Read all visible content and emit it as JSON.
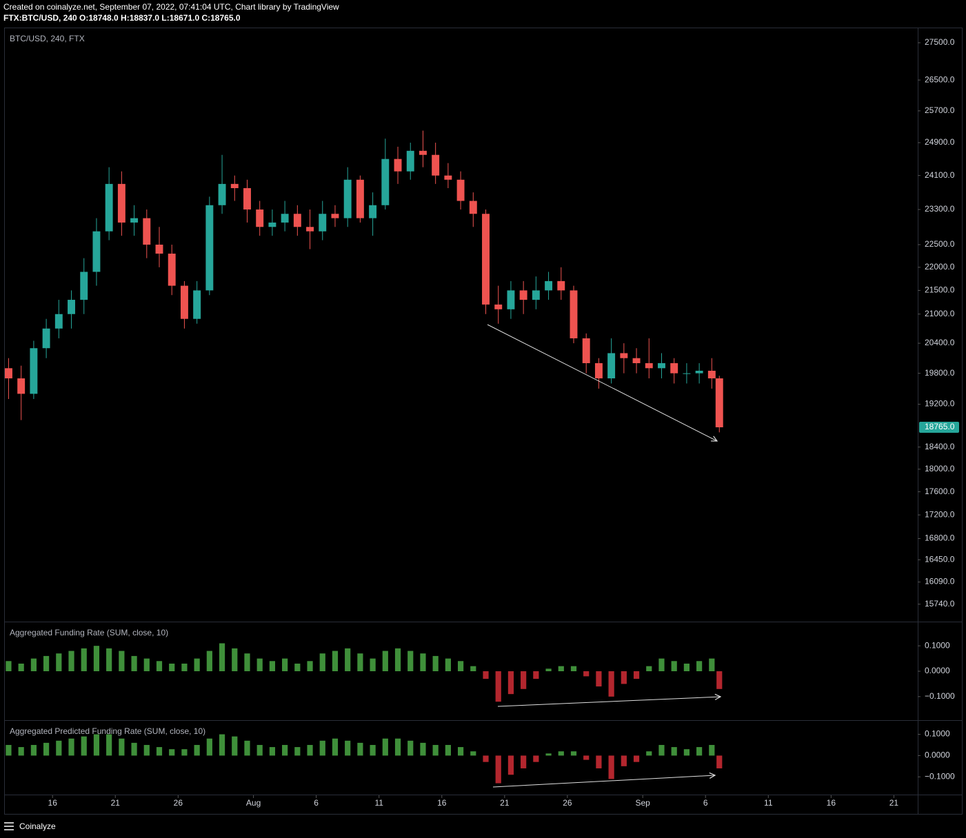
{
  "header": {
    "created": "Created on coinalyze.net, September 07, 2022, 07:41:04 UTC, Chart library by TradingView",
    "symbol_line": "FTX:BTC/USD, 240 O:18748.0 H:18837.0 L:18671.0 C:18765.0"
  },
  "footer": {
    "brand": "Coinalyze"
  },
  "chart_data": [
    {
      "type": "candlestick",
      "title": "BTC/USD, 240, FTX",
      "log_scale": true,
      "color_up": "#26a69a",
      "color_down": "#ef5350",
      "x": [
        11.5,
        12.5,
        13.5,
        14.5,
        15.5,
        16.5,
        17.5,
        18.5,
        19.5,
        20.5,
        21.5,
        22.5,
        23.5,
        24.5,
        25.5,
        26.5,
        27.5,
        28.5,
        29.5,
        30.5,
        31.5,
        32.5,
        33.5,
        34.5,
        35.5,
        36.5,
        37.5,
        38.5,
        39.5,
        40.5,
        41.5,
        42.5,
        43.5,
        44.5,
        45.5,
        46.5,
        47.5,
        48.5,
        49.5,
        50.5,
        51.5,
        52.5,
        53.5,
        54.5,
        55.5,
        56.5,
        57.5,
        58.5,
        59.5,
        60.5,
        61.5,
        62.5,
        63.5,
        64.5,
        65.5,
        66.5,
        67.5,
        68.1
      ],
      "open": [
        19900,
        19700,
        19400,
        20300,
        20700,
        21000,
        21300,
        21900,
        22800,
        23900,
        23000,
        23100,
        22500,
        22300,
        21600,
        20900,
        21500,
        23400,
        23900,
        23800,
        23300,
        22900,
        23000,
        23200,
        22900,
        22800,
        23200,
        23100,
        24000,
        23100,
        23400,
        24500,
        24200,
        24700,
        24600,
        24100,
        24000,
        23500,
        23200,
        21200,
        21100,
        21500,
        21300,
        21500,
        21700,
        21500,
        20500,
        20000,
        19700,
        20200,
        20100,
        20000,
        19900,
        20000,
        19800,
        19800,
        19850,
        19700
      ],
      "high": [
        20100,
        19950,
        20450,
        20900,
        21300,
        21500,
        22200,
        23100,
        24300,
        24200,
        23400,
        23300,
        22900,
        22500,
        21700,
        21700,
        23600,
        24600,
        24100,
        24000,
        23500,
        23300,
        23500,
        23400,
        23300,
        23500,
        23400,
        24300,
        24100,
        23700,
        25000,
        24800,
        24900,
        25200,
        24900,
        24400,
        24200,
        23700,
        23300,
        21600,
        21700,
        21700,
        21800,
        21900,
        22000,
        21600,
        20600,
        20100,
        20500,
        20400,
        20300,
        20500,
        20200,
        20100,
        20000,
        20000,
        20100,
        19750
      ],
      "low": [
        19300,
        18900,
        19300,
        20100,
        20500,
        20700,
        21000,
        21600,
        22600,
        22700,
        22700,
        22200,
        22000,
        21400,
        20700,
        20800,
        21400,
        23200,
        23500,
        23000,
        22700,
        22700,
        22800,
        22700,
        22400,
        22600,
        22900,
        22900,
        23000,
        22700,
        23300,
        23900,
        24000,
        24300,
        23900,
        23800,
        23300,
        22900,
        21000,
        20800,
        20900,
        21000,
        21100,
        21300,
        21300,
        20400,
        19800,
        19500,
        19600,
        19800,
        19800,
        19700,
        19700,
        19600,
        19600,
        19600,
        19500,
        18671
      ],
      "close": [
        19700,
        19400,
        20300,
        20700,
        21000,
        21300,
        21900,
        22800,
        23900,
        23000,
        23100,
        22500,
        22300,
        21600,
        20900,
        21500,
        23400,
        23900,
        23800,
        23300,
        22900,
        23000,
        23200,
        22900,
        22800,
        23200,
        23100,
        24000,
        23100,
        23400,
        24500,
        24200,
        24700,
        24600,
        24100,
        24000,
        23500,
        23200,
        21200,
        21100,
        21500,
        21300,
        21500,
        21700,
        21500,
        20500,
        20000,
        19700,
        20200,
        20100,
        20000,
        19900,
        20000,
        19800,
        19800,
        19850,
        19700,
        18765
      ],
      "xlim": [
        11.2,
        83.9
      ],
      "ylim": [
        15480,
        27880
      ],
      "yticks": [
        {
          "value": 27500,
          "label": "27500.0"
        },
        {
          "value": 26500,
          "label": "26500.0"
        },
        {
          "value": 25700,
          "label": "25700.0"
        },
        {
          "value": 24900,
          "label": "24900.0"
        },
        {
          "value": 24100,
          "label": "24100.0"
        },
        {
          "value": 23300,
          "label": "23300.0"
        },
        {
          "value": 22500,
          "label": "22500.0"
        },
        {
          "value": 22000,
          "label": "22000.0"
        },
        {
          "value": 21500,
          "label": "21500.0"
        },
        {
          "value": 21000,
          "label": "21000.0"
        },
        {
          "value": 20400,
          "label": "20400.0"
        },
        {
          "value": 19800,
          "label": "19800.0"
        },
        {
          "value": 19200,
          "label": "19200.0"
        },
        {
          "value": 18400,
          "label": "18400.0"
        },
        {
          "value": 18000,
          "label": "18000.0"
        },
        {
          "value": 17600,
          "label": "17600.0"
        },
        {
          "value": 17200,
          "label": "17200.0"
        },
        {
          "value": 16800,
          "label": "16800.0"
        },
        {
          "value": 16450,
          "label": "16450.0"
        },
        {
          "value": 16090,
          "label": "16090.0"
        },
        {
          "value": 15740,
          "label": "15740.0"
        }
      ],
      "last_price": {
        "value": 18765,
        "label": "18765.0"
      },
      "last_price_color": "#26a69a"
    },
    {
      "type": "bar",
      "title": "Aggregated Funding Rate (SUM, close, 10)",
      "color_positive": "#3f8f3a",
      "color_negative": "#b3262e",
      "x": [
        11.5,
        12.5,
        13.5,
        14.5,
        15.5,
        16.5,
        17.5,
        18.5,
        19.5,
        20.5,
        21.5,
        22.5,
        23.5,
        24.5,
        25.5,
        26.5,
        27.5,
        28.5,
        29.5,
        30.5,
        31.5,
        32.5,
        33.5,
        34.5,
        35.5,
        36.5,
        37.5,
        38.5,
        39.5,
        40.5,
        41.5,
        42.5,
        43.5,
        44.5,
        45.5,
        46.5,
        47.5,
        48.5,
        49.5,
        50.5,
        51.5,
        52.5,
        53.5,
        54.5,
        55.5,
        56.5,
        57.5,
        58.5,
        59.5,
        60.5,
        61.5,
        62.5,
        63.5,
        64.5,
        65.5,
        66.5,
        67.5,
        68.1
      ],
      "values": [
        0.04,
        0.03,
        0.05,
        0.06,
        0.07,
        0.08,
        0.09,
        0.1,
        0.09,
        0.08,
        0.06,
        0.05,
        0.04,
        0.03,
        0.03,
        0.05,
        0.08,
        0.11,
        0.09,
        0.07,
        0.05,
        0.04,
        0.05,
        0.03,
        0.04,
        0.07,
        0.08,
        0.09,
        0.07,
        0.05,
        0.08,
        0.09,
        0.08,
        0.07,
        0.06,
        0.05,
        0.04,
        0.02,
        -0.03,
        -0.12,
        -0.09,
        -0.07,
        -0.03,
        0.01,
        0.02,
        0.02,
        -0.02,
        -0.06,
        -0.1,
        -0.05,
        -0.03,
        0.02,
        0.05,
        0.04,
        0.03,
        0.04,
        0.05,
        -0.07
      ],
      "xlim": [
        11.2,
        83.9
      ],
      "ylim": [
        -0.19,
        0.19
      ],
      "yticks": [
        {
          "value": 0.1,
          "label": "0.1000"
        },
        {
          "value": 0,
          "label": "0.0000"
        },
        {
          "value": -0.1,
          "label": "−0.1000"
        }
      ]
    },
    {
      "type": "bar",
      "title": "Aggregated Predicted Funding Rate (SUM, close, 10)",
      "color_positive": "#3f8f3a",
      "color_negative": "#b3262e",
      "x": [
        11.5,
        12.5,
        13.5,
        14.5,
        15.5,
        16.5,
        17.5,
        18.5,
        19.5,
        20.5,
        21.5,
        22.5,
        23.5,
        24.5,
        25.5,
        26.5,
        27.5,
        28.5,
        29.5,
        30.5,
        31.5,
        32.5,
        33.5,
        34.5,
        35.5,
        36.5,
        37.5,
        38.5,
        39.5,
        40.5,
        41.5,
        42.5,
        43.5,
        44.5,
        45.5,
        46.5,
        47.5,
        48.5,
        49.5,
        50.5,
        51.5,
        52.5,
        53.5,
        54.5,
        55.5,
        56.5,
        57.5,
        58.5,
        59.5,
        60.5,
        61.5,
        62.5,
        63.5,
        64.5,
        65.5,
        66.5,
        67.5,
        68.1
      ],
      "values": [
        0.05,
        0.04,
        0.05,
        0.06,
        0.07,
        0.08,
        0.09,
        0.1,
        0.1,
        0.08,
        0.06,
        0.05,
        0.04,
        0.03,
        0.03,
        0.05,
        0.08,
        0.1,
        0.09,
        0.07,
        0.05,
        0.04,
        0.05,
        0.04,
        0.05,
        0.07,
        0.08,
        0.07,
        0.06,
        0.05,
        0.08,
        0.08,
        0.07,
        0.06,
        0.05,
        0.05,
        0.04,
        0.02,
        -0.03,
        -0.13,
        -0.09,
        -0.06,
        -0.03,
        0.01,
        0.02,
        0.02,
        -0.02,
        -0.06,
        -0.11,
        -0.05,
        -0.03,
        0.02,
        0.05,
        0.04,
        0.03,
        0.04,
        0.05,
        -0.06
      ],
      "xlim": [
        11.2,
        83.9
      ],
      "ylim": [
        -0.18,
        0.16
      ],
      "yticks": [
        {
          "value": 0.1,
          "label": "0.1000"
        },
        {
          "value": 0,
          "label": "0.0000"
        },
        {
          "value": -0.1,
          "label": "−0.1000"
        }
      ],
      "xticks": [
        {
          "value": 15,
          "label": "16"
        },
        {
          "value": 20,
          "label": "21"
        },
        {
          "value": 25,
          "label": "26"
        },
        {
          "value": 31,
          "label": "Aug"
        },
        {
          "value": 36,
          "label": "6"
        },
        {
          "value": 41,
          "label": "11"
        },
        {
          "value": 46,
          "label": "16"
        },
        {
          "value": 51,
          "label": "21"
        },
        {
          "value": 56,
          "label": "26"
        },
        {
          "value": 62,
          "label": "Sep"
        },
        {
          "value": 67,
          "label": "6"
        },
        {
          "value": 72,
          "label": "11"
        },
        {
          "value": 77,
          "label": "16"
        },
        {
          "value": 82,
          "label": "21"
        }
      ]
    }
  ]
}
